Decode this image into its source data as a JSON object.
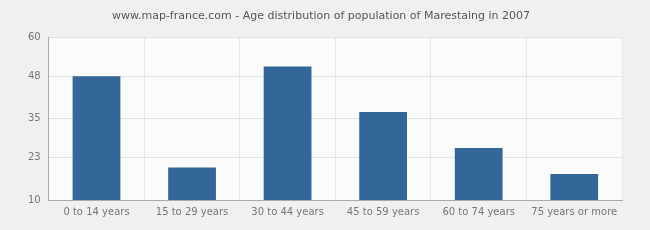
{
  "chart_data": {
    "type": "bar",
    "title": "www.map-france.com - Age distribution of population of Marestaing in 2007",
    "categories": [
      "0 to 14 years",
      "15 to 29 years",
      "30 to 44 years",
      "45 to 59 years",
      "60 to 74 years",
      "75 years or more"
    ],
    "values": [
      48,
      20,
      51,
      37,
      26,
      18
    ],
    "color": "#336699",
    "ylim": [
      10,
      60
    ],
    "yticks": [
      10,
      23,
      35,
      48,
      60
    ],
    "grid": true
  }
}
